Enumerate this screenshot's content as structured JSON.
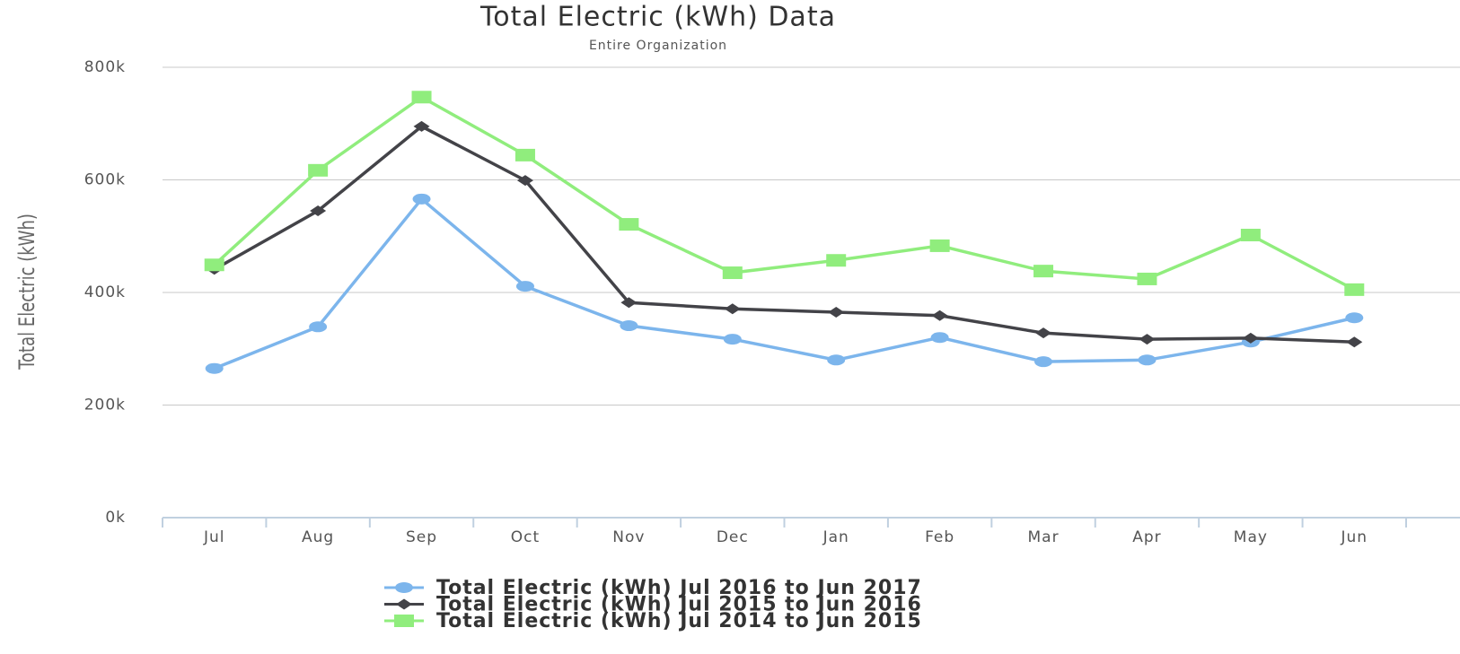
{
  "chart_data": {
    "type": "line",
    "title": "Total Electric (kWh) Data",
    "subtitle": "Entire Organization",
    "y_label": "Total Electric (kWh)",
    "categories": [
      "Jul",
      "Aug",
      "Sep",
      "Oct",
      "Nov",
      "Dec",
      "Jan",
      "Feb",
      "Mar",
      "Apr",
      "May",
      "Jun"
    ],
    "series": [
      {
        "name": "Total Electric (kWh) Jul 2016 to Jun 2017",
        "color": "#7cb5ec",
        "marker": "circle",
        "values": [
          265000,
          339000,
          566000,
          411000,
          341000,
          317000,
          280000,
          320000,
          277000,
          280000,
          312000,
          355000
        ]
      },
      {
        "name": "Total Electric (kWh) Jul 2015 to Jun 2016",
        "color": "#434348",
        "marker": "diamond",
        "values": [
          441000,
          545000,
          695000,
          599000,
          382000,
          371000,
          365000,
          359000,
          328000,
          317000,
          319000,
          312000
        ]
      },
      {
        "name": "Total Electric (kWh) Jul 2014 to Jun 2015",
        "color": "#90ed7d",
        "marker": "square",
        "values": [
          449000,
          617000,
          747000,
          644000,
          521000,
          435000,
          457000,
          483000,
          438000,
          424000,
          502000,
          405000
        ]
      }
    ],
    "ylim": [
      0,
      800000
    ],
    "yticks": [
      {
        "value": 0,
        "label": "0k"
      },
      {
        "value": 200000,
        "label": "200k"
      },
      {
        "value": 400000,
        "label": "400k"
      },
      {
        "value": 600000,
        "label": "600k"
      },
      {
        "value": 800000,
        "label": "800k"
      }
    ],
    "grid": true,
    "legend": "bottom"
  }
}
